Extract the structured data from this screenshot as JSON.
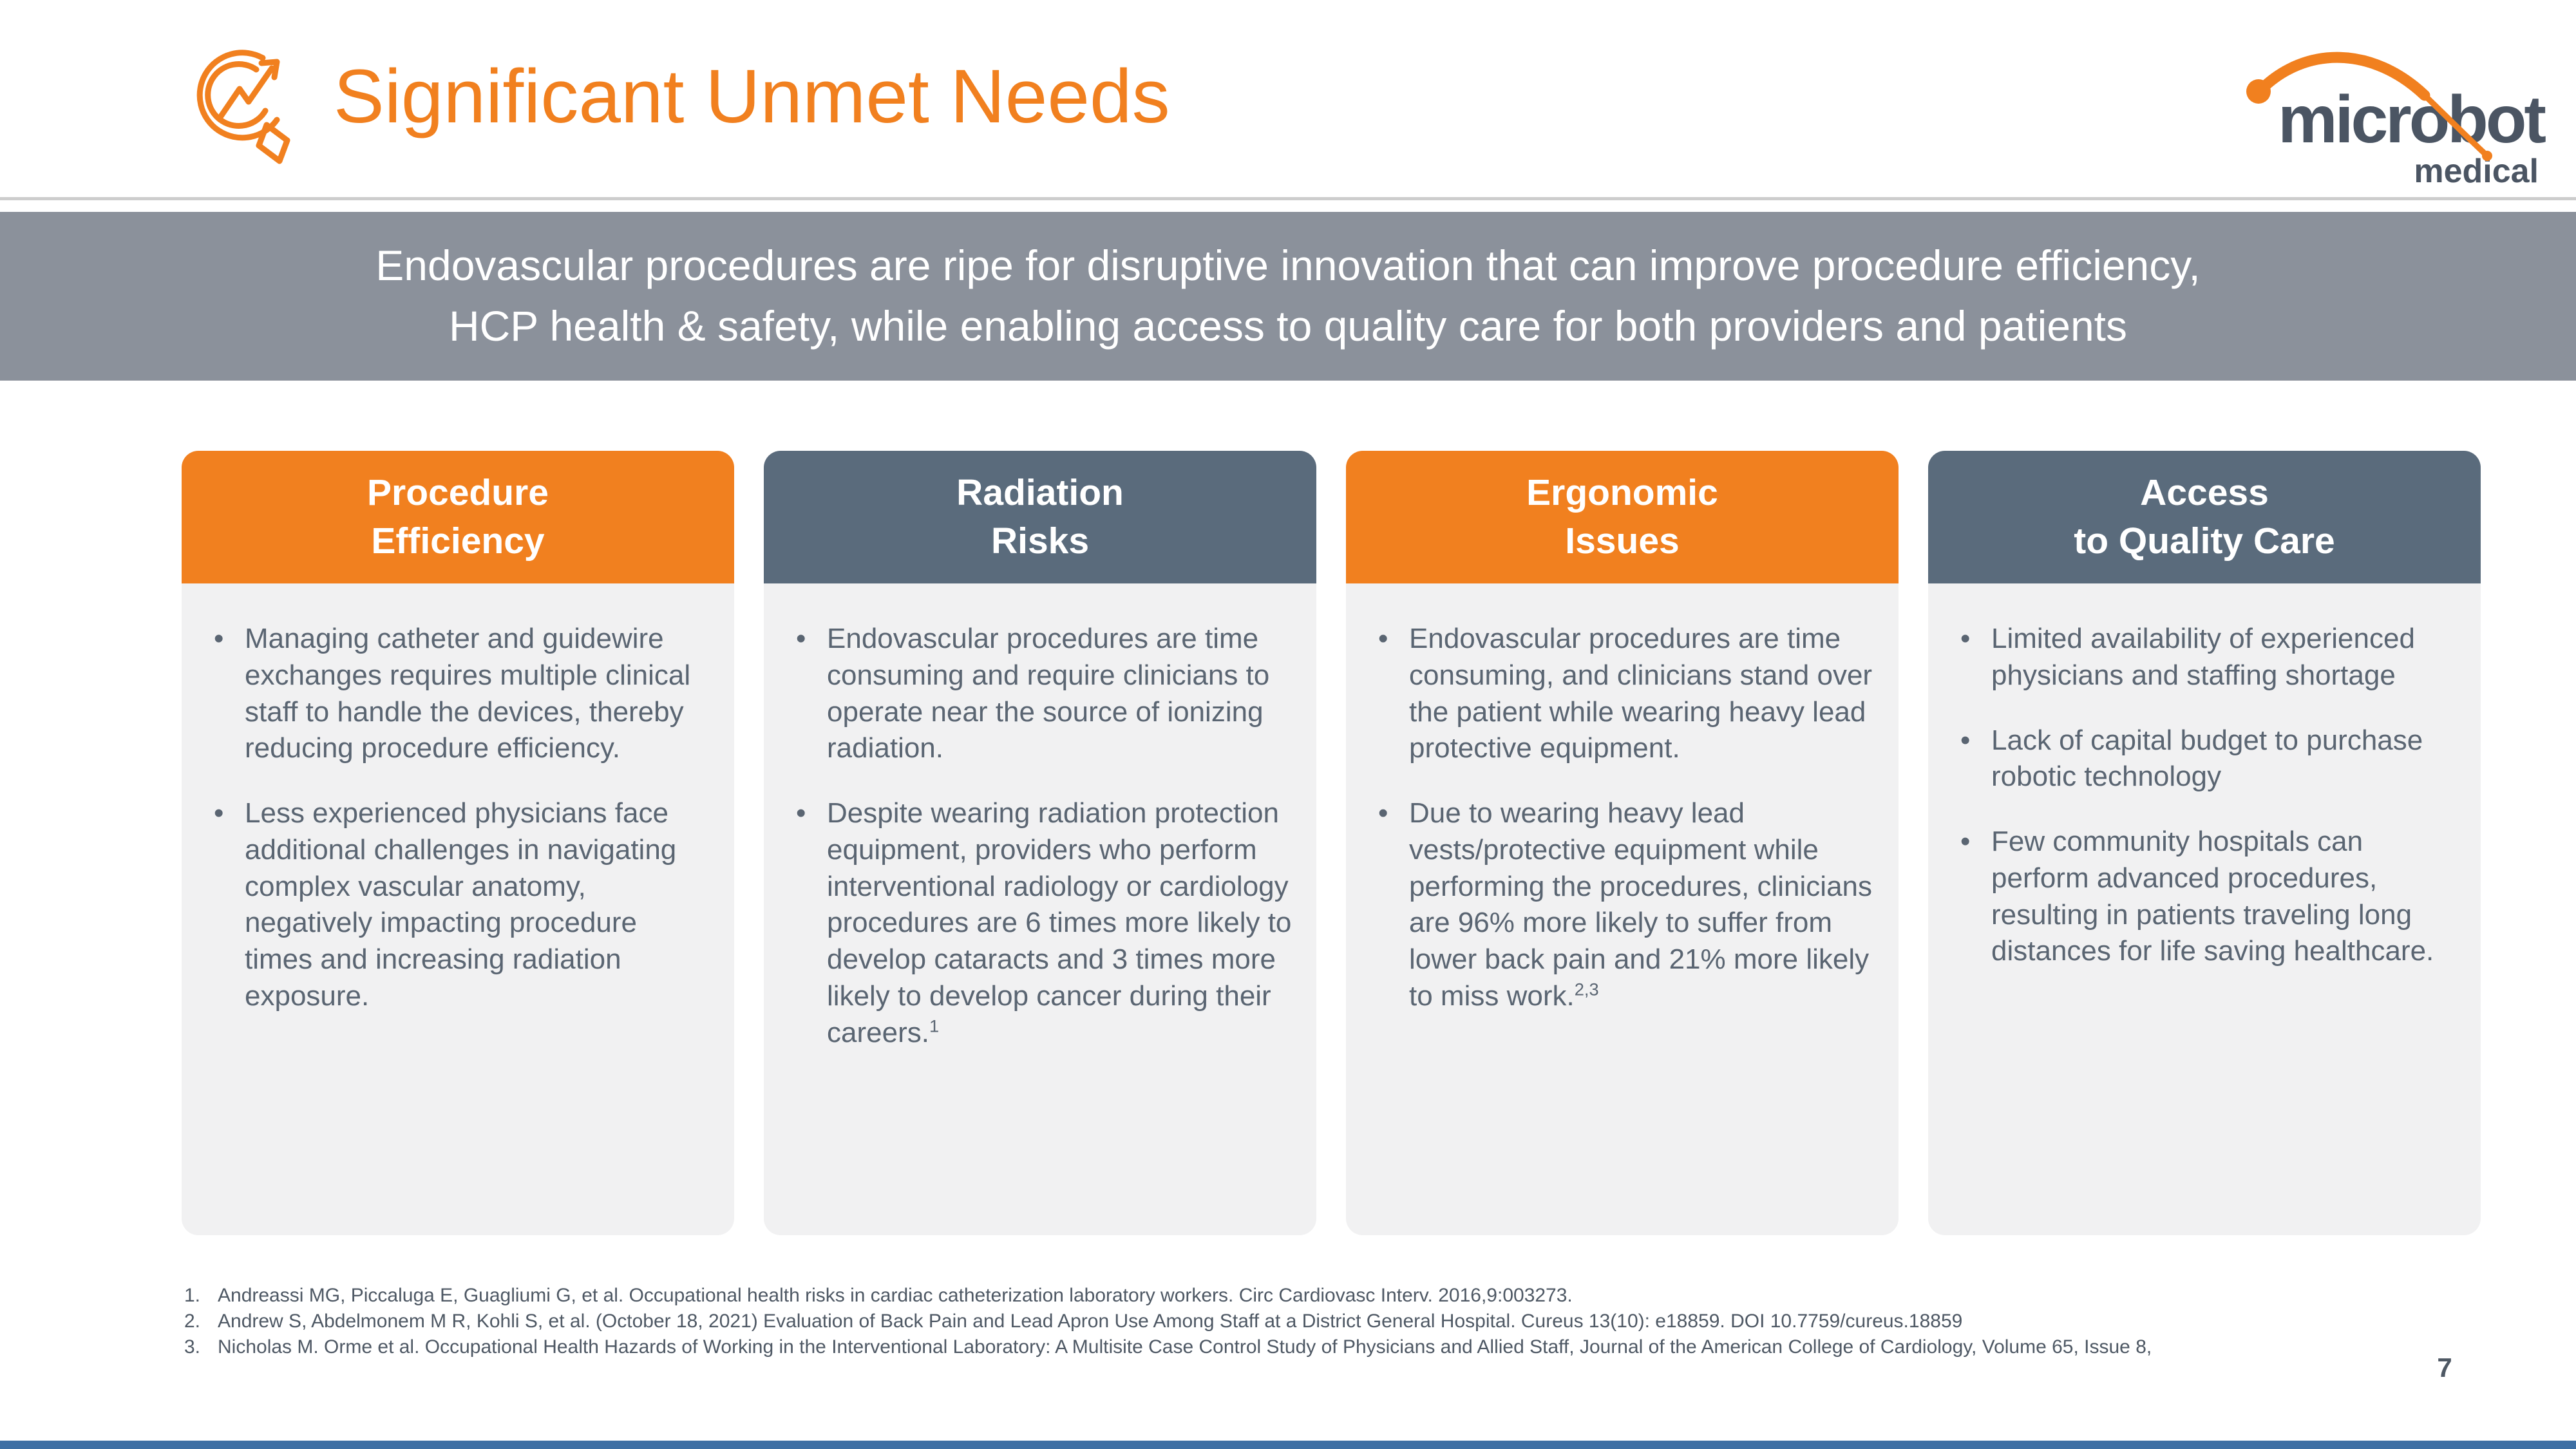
{
  "slide": {
    "title": "Significant Unmet Needs",
    "page_number": "7"
  },
  "logo": {
    "word": "microbot",
    "sub": "medical"
  },
  "banner": {
    "line1": "Endovascular procedures are ripe for disruptive innovation that can improve procedure efficiency,",
    "line2": "HCP health & safety, while enabling access to quality care for both providers and patients"
  },
  "colors": {
    "orange": "#F1801F",
    "slate": "#5A6B7C",
    "banner_gray": "#8B919B",
    "card_bg": "#F1F1F2",
    "bullet_text": "#5A6572",
    "footnote_text": "#4E5864",
    "logo_dark": "#4B5563",
    "footer_bar_blue": "#3E6FA4"
  },
  "columns": [
    {
      "header_lines": [
        "Procedure",
        "Efficiency"
      ],
      "header_color": "#F1801F",
      "bullets": [
        {
          "text": "Managing catheter and guidewire exchanges requires multiple clinical staff to handle the devices, thereby reducing procedure efficiency."
        },
        {
          "text": "Less experienced physicians face additional challenges in navigating complex vascular anatomy, negatively impacting procedure times and increasing radiation exposure."
        }
      ]
    },
    {
      "header_lines": [
        "Radiation",
        "Risks"
      ],
      "header_color": "#5A6B7C",
      "bullets": [
        {
          "text": "Endovascular procedures are time consuming and require clinicians to operate near the source of ionizing radiation."
        },
        {
          "text": "Despite wearing radiation protection equipment, providers who perform interventional radiology or cardiology procedures are 6 times more likely to develop cataracts and 3 times more likely to develop cancer during their careers.",
          "sup": "1"
        }
      ]
    },
    {
      "header_lines": [
        "Ergonomic",
        "Issues"
      ],
      "header_color": "#F1801F",
      "bullets": [
        {
          "text": "Endovascular procedures are time consuming, and clinicians stand over the patient while wearing heavy lead protective equipment."
        },
        {
          "text": "Due to wearing heavy lead vests/protective equipment while performing the procedures, clinicians are 96% more likely to suffer from lower back pain and 21% more likely to miss work.",
          "sup": "2,3"
        }
      ]
    },
    {
      "header_lines": [
        "Access",
        "to Quality Care"
      ],
      "header_color": "#5A6B7C",
      "bullets": [
        {
          "text": "Limited availability of experienced physicians and staffing shortage"
        },
        {
          "text": "Lack of capital budget to purchase robotic technology"
        },
        {
          "text": "Few community hospitals can perform advanced procedures, resulting in patients traveling long distances for life saving healthcare."
        }
      ]
    }
  ],
  "footnotes": [
    {
      "num": "1.",
      "text": "Andreassi MG, Piccaluga E, Guagliumi G, et al. Occupational health risks in cardiac catheterization laboratory workers. Circ Cardiovasc Interv. 2016,9:003273."
    },
    {
      "num": "2.",
      "text": "Andrew S, Abdelmonem M R, Kohli S, et al. (October 18, 2021) Evaluation of Back Pain and Lead Apron Use Among Staff at a District General Hospital.  Cureus 13(10): e18859. DOI 10.7759/cureus.18859"
    },
    {
      "num": "3.",
      "text": "Nicholas M. Orme et al. Occupational Health Hazards of Working in the Interventional Laboratory: A Multisite Case Control Study of Physicians and Allied Staff, Journal of the American College of Cardiology, Volume 65, Issue 8,"
    }
  ]
}
